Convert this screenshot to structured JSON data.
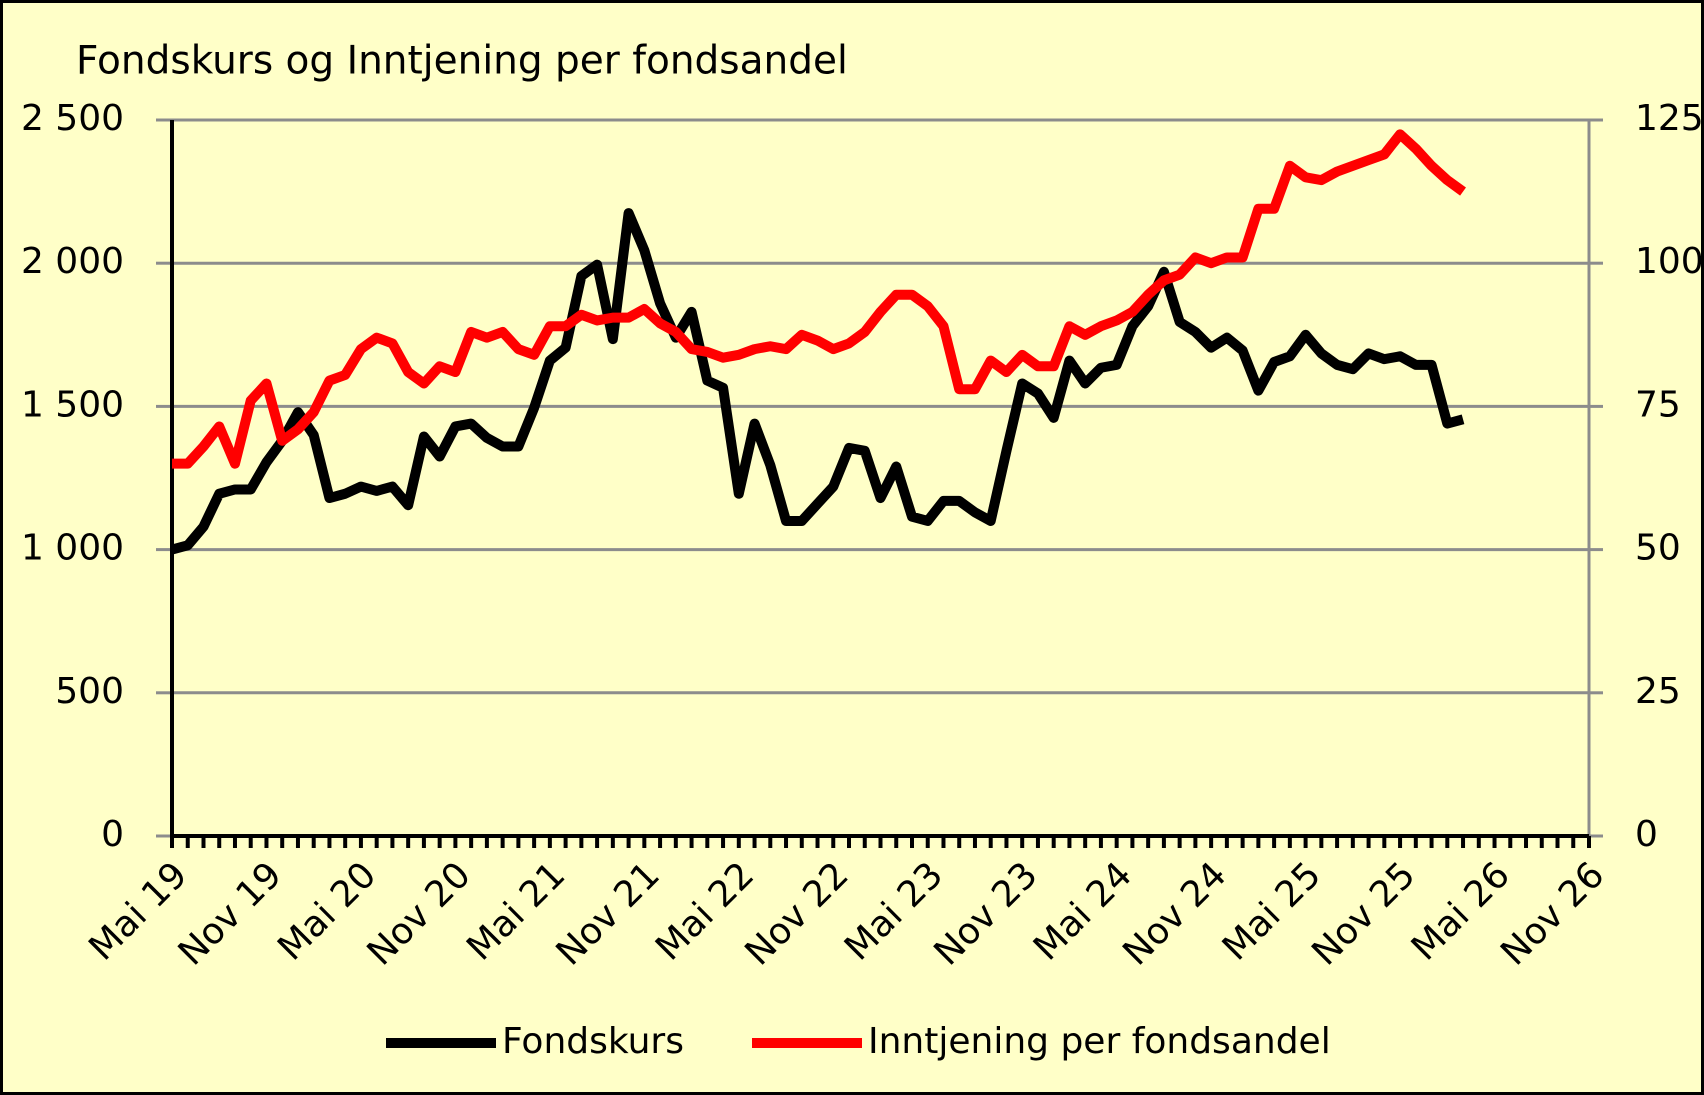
{
  "chart_data": {
    "type": "line",
    "title": "Fondskurs og Inntjening per fondsandel",
    "categories": [
      "Mai 19",
      null,
      null,
      null,
      null,
      null,
      "Nov 19",
      null,
      null,
      null,
      null,
      null,
      "Mai 20",
      null,
      null,
      null,
      null,
      null,
      "Nov 20",
      null,
      null,
      null,
      null,
      null,
      "Mai 21",
      null,
      null,
      null,
      null,
      null,
      "Nov 21",
      null,
      null,
      null,
      null,
      null,
      "Mai 22",
      null,
      null,
      null,
      null,
      null,
      "Nov 22",
      null,
      null,
      null,
      null,
      null,
      "Mai 23",
      null,
      null,
      null,
      null,
      null,
      "Nov 23",
      null,
      null,
      null,
      null,
      null,
      "Mai 24",
      null,
      null,
      null,
      null,
      null,
      "Nov 24",
      null,
      null,
      null,
      null,
      null,
      "Mai 25",
      null,
      null,
      null,
      null,
      null,
      "Nov 25",
      null,
      null,
      null,
      null,
      null,
      "Mai 26",
      null,
      null,
      null,
      null,
      null,
      "Nov 26"
    ],
    "series": [
      {
        "name": "Fondskurs",
        "color": "#000000",
        "axis": "y",
        "values": [
          1000,
          1015,
          1080,
          1195,
          1210,
          1210,
          1305,
          1380,
          1480,
          1400,
          1180,
          1195,
          1220,
          1205,
          1220,
          1155,
          1395,
          1325,
          1430,
          1440,
          1390,
          1360,
          1360,
          1495,
          1660,
          1705,
          1955,
          1995,
          1735,
          2175,
          2045,
          1860,
          1740,
          1830,
          1590,
          1565,
          1195,
          1440,
          1295,
          1100,
          1100,
          1160,
          1220,
          1355,
          1345,
          1180,
          1290,
          1115,
          1100,
          1170,
          1170,
          1130,
          1100,
          1345,
          1580,
          1545,
          1460,
          1660,
          1580,
          1635,
          1645,
          1780,
          1850,
          1970,
          1795,
          1760,
          1705,
          1740,
          1695,
          1555,
          1655,
          1675,
          1750,
          1685,
          1645,
          1630,
          1685,
          1665,
          1675,
          1645,
          1645,
          1440,
          1455,
          null,
          null,
          null,
          null,
          null,
          null,
          null,
          null
        ]
      },
      {
        "name": "Inntjening per fondsandel",
        "color": "#ff0000",
        "axis": "y2",
        "values": [
          65,
          65,
          68,
          71.5,
          65,
          76,
          79,
          69,
          71,
          74,
          79.5,
          80.5,
          85,
          87,
          86,
          81,
          79,
          82,
          81,
          88,
          87,
          88,
          85,
          84,
          89,
          89,
          91,
          90,
          90.5,
          90.5,
          92,
          89.5,
          88,
          85,
          84.5,
          83.5,
          84,
          85,
          85.5,
          85,
          87.5,
          86.5,
          85,
          86,
          88,
          91.5,
          94.5,
          94.5,
          92.5,
          89,
          78,
          78,
          83,
          81,
          84,
          82,
          82,
          89,
          87.5,
          89,
          90,
          91.5,
          94.5,
          97,
          98,
          101,
          100,
          101,
          101,
          109.5,
          109.5,
          117,
          115,
          114.5,
          116,
          117,
          118,
          119,
          122.5,
          120,
          117,
          114.5,
          112.5,
          null,
          null,
          null,
          null,
          null,
          null,
          null,
          null
        ]
      }
    ],
    "ylim": [
      0,
      2500
    ],
    "yticks": [
      0,
      500,
      {
        "value": 1000,
        "label": "1 000"
      },
      {
        "value": 1500,
        "label": "1 500"
      },
      {
        "value": 2000,
        "label": "2 000"
      },
      {
        "value": 2500,
        "label": "2 500"
      }
    ],
    "y2lim": [
      0,
      125
    ],
    "y2ticks": [
      0,
      25,
      50,
      75,
      100,
      125
    ],
    "grid": true,
    "legend": "bottom"
  }
}
